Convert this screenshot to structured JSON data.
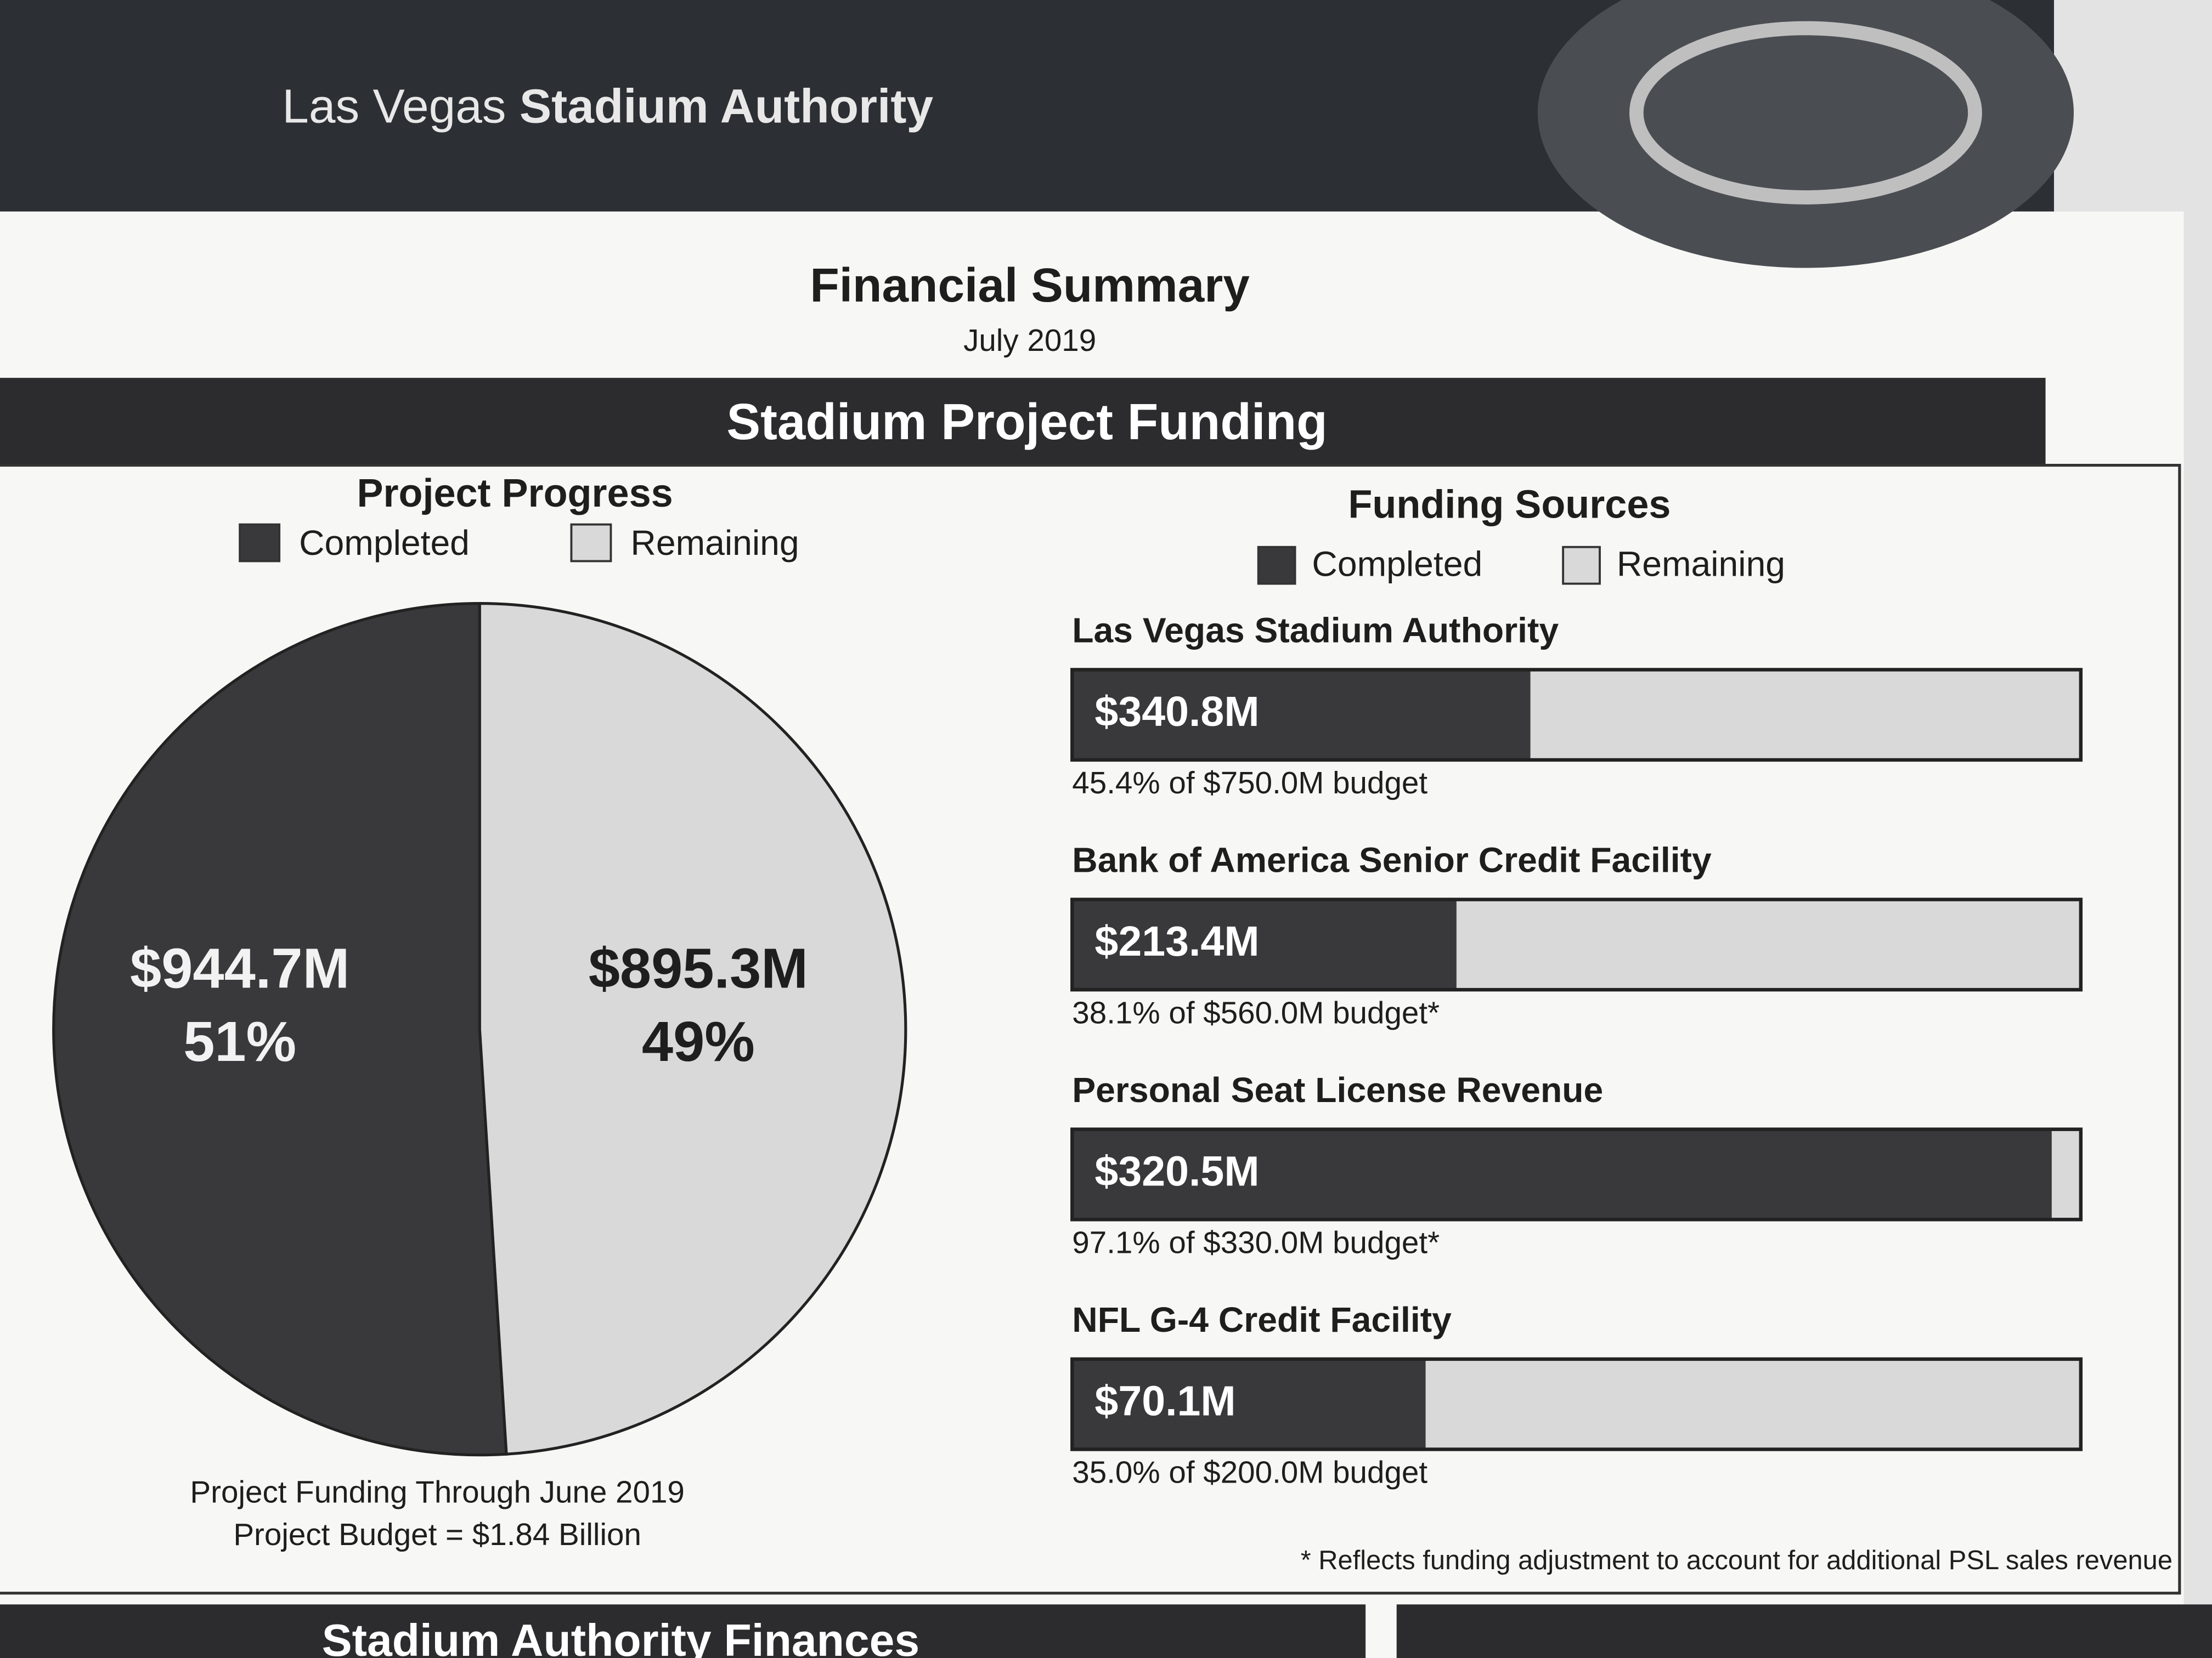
{
  "header": {
    "org_light": "Las Vegas",
    "org_bold": "Stadium Authority"
  },
  "title": "Financial Summary",
  "date": "July 2019",
  "section": "Stadium Project Funding",
  "chart_data": [
    {
      "type": "pie",
      "title": "Project Progress",
      "categories": [
        "Completed",
        "Remaining"
      ],
      "values": [
        51,
        49
      ],
      "value_labels": [
        "51%",
        "49%"
      ],
      "amounts": [
        944.7,
        895.3
      ],
      "amount_labels": [
        "$944.7M",
        "$895.3M"
      ],
      "colors": [
        "#39393b",
        "#d9d9d9"
      ],
      "notes": [
        "Project Funding Through June 2019",
        "Project Budget = $1.84 Billion"
      ]
    },
    {
      "type": "bar",
      "orientation": "horizontal",
      "title": "Funding Sources",
      "categories": [
        "Las Vegas Stadium Authority",
        "Bank of America Senior Credit Facility",
        "Personal Seat License Revenue",
        "NFL G-4 Credit Facility"
      ],
      "series": [
        {
          "name": "Completed",
          "color": "#39393b",
          "values": [
            340.8,
            213.4,
            320.5,
            70.1
          ],
          "value_labels": [
            "$340.8M",
            "$213.4M",
            "$320.5M",
            "$70.1M"
          ]
        },
        {
          "name": "Remaining",
          "color": "#d9d9d9",
          "values": [
            409.2,
            346.6,
            9.5,
            129.9
          ]
        }
      ],
      "notes": [
        "45.4% of $750.0M budget",
        "38.1% of $560.0M budget*",
        "97.1% of $330.0M budget*",
        "35.0% of $200.0M budget"
      ],
      "footnote": "* Reflects funding adjustment to account for additional PSL sales revenue"
    }
  ],
  "next_section": "Stadium Authority Finances"
}
